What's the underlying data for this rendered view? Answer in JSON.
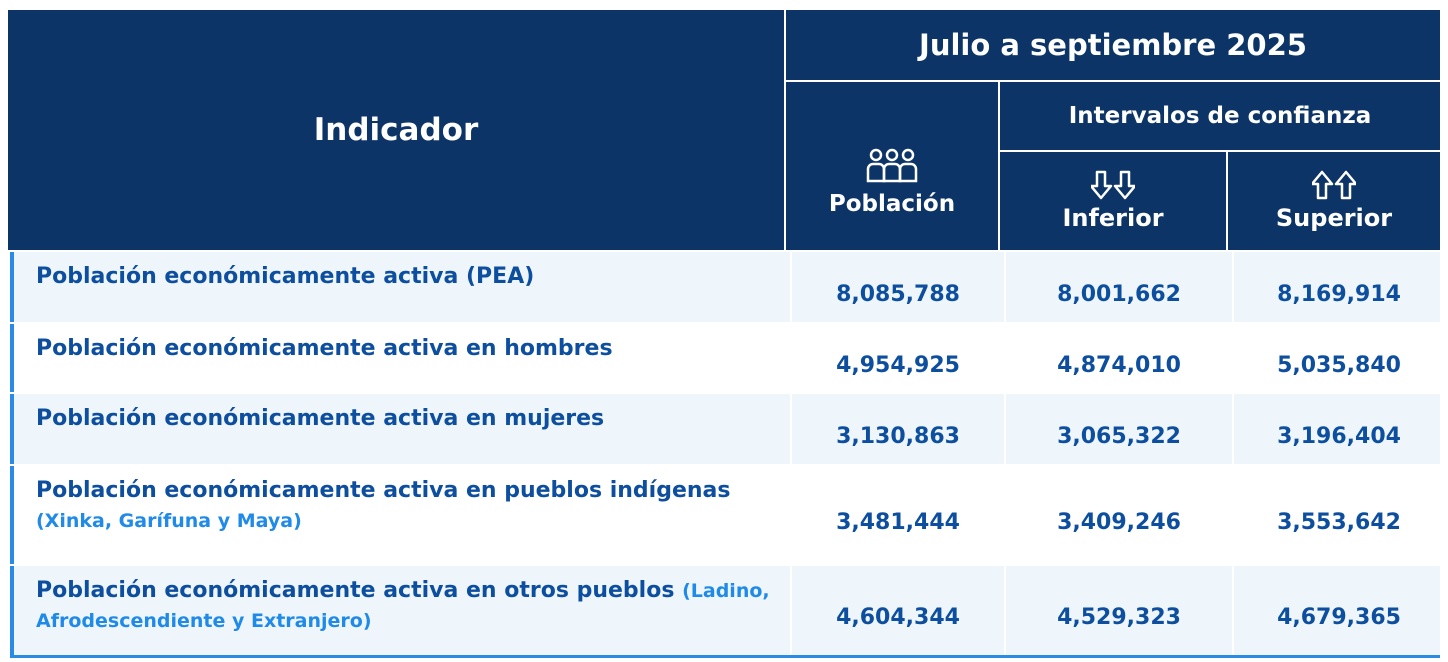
{
  "header": {
    "indicator": "Indicador",
    "period": "Julio a septiembre 2025",
    "population": "Población",
    "intervals": "Intervalos de confianza",
    "lower": "Inferior",
    "upper": "Superior"
  },
  "rows": [
    {
      "indicator": "Población  económicamente activa (PEA)",
      "population": "8,085,788",
      "lower": "8,001,662",
      "upper": "8,169,914"
    },
    {
      "indicator": "Población  económicamente activa en hombres",
      "population": "4,954,925",
      "lower": "4,874,010",
      "upper": "5,035,840"
    },
    {
      "indicator": "Población  económicamente activa en mujeres",
      "population": "3,130,863",
      "lower": "3,065,322",
      "upper": "3,196,404"
    },
    {
      "indicator": "Población  económicamente activa en pueblos indígenas",
      "note": "(Xinka, Garífuna y Maya)",
      "population": "3,481,444",
      "lower": "3,409,246",
      "upper": "3,553,642"
    },
    {
      "indicator": "Población  económicamente activa en otros pueblos",
      "note": "(Ladino, Afrodescendiente y Extranjero)",
      "population": "4,604,344",
      "lower": "4,529,323",
      "upper": "4,679,365"
    }
  ]
}
